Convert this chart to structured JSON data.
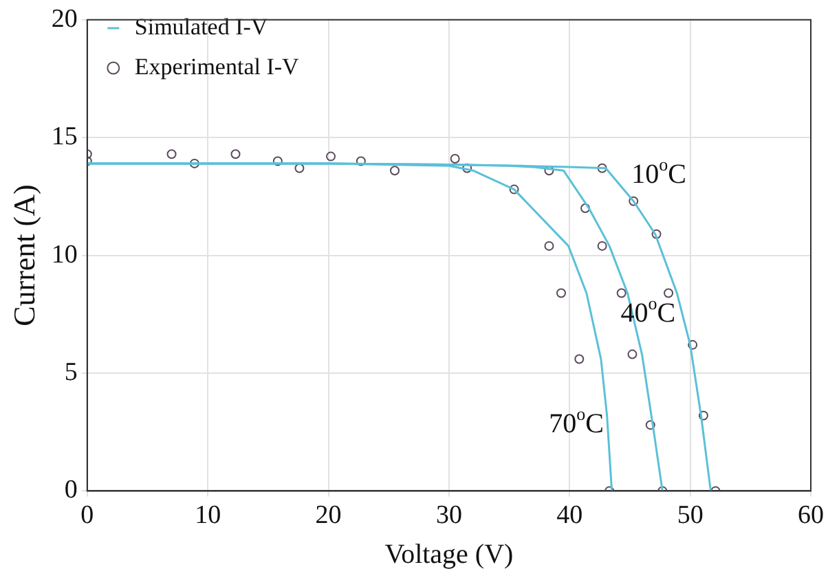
{
  "chart_data": {
    "type": "line",
    "xlabel": "Voltage (V)",
    "ylabel": "Current (A)",
    "xlim": [
      0,
      60
    ],
    "xticks": [
      0,
      10,
      20,
      30,
      40,
      50,
      60
    ],
    "ylim": [
      0,
      20
    ],
    "yticks": [
      0,
      5,
      10,
      15,
      20
    ],
    "grid": true,
    "legend": "top left",
    "line_style": "solid",
    "series": [
      {
        "name": "Simulated I-V",
        "color": "#5bc0d8",
        "marker": "none",
        "x": [
          0,
          20,
          30,
          36,
          40,
          43.0,
          45.3,
          47.1,
          48.9,
          50.0,
          50.9,
          51.7
        ],
        "values": [
          13.9,
          13.9,
          13.85,
          13.8,
          13.75,
          13.7,
          12.3,
          10.9,
          8.4,
          6.2,
          3.2,
          0
        ]
      },
      {
        "color": "#5bc0d8",
        "marker": "none",
        "x": [
          0,
          20,
          30,
          35,
          37,
          39.5,
          41.6,
          43.3,
          44.8,
          46.0,
          46.9,
          47.7
        ],
        "values": [
          13.9,
          13.9,
          13.85,
          13.8,
          13.75,
          13.6,
          12.0,
          10.4,
          8.4,
          5.8,
          2.8,
          0
        ]
      },
      {
        "color": "#5bc0d8",
        "marker": "none",
        "x": [
          0,
          20,
          30,
          32,
          35.4,
          39.9,
          41.4,
          42.6,
          43.1,
          43.5
        ],
        "values": [
          13.9,
          13.9,
          13.8,
          13.6,
          12.8,
          10.4,
          8.4,
          5.6,
          3.2,
          0
        ]
      },
      {
        "name": "Experimental I-V",
        "type": "scatter",
        "color": "#5a4a5a",
        "marker": "circle",
        "x": [
          0,
          0,
          7,
          8.9,
          12.3,
          15.8,
          17.6,
          20.2,
          22.7,
          25.5,
          30.5,
          31.5,
          35.4,
          38.3,
          42.7,
          45.3,
          41.3,
          38.3,
          42.7,
          47.2,
          39.3,
          44.3,
          48.2,
          50.2,
          45.2,
          40.8,
          51.1,
          46.7,
          43.3,
          47.7,
          52.1
        ],
        "values": [
          14.3,
          14.0,
          14.3,
          13.9,
          14.3,
          14.0,
          13.7,
          14.2,
          14.0,
          13.6,
          14.1,
          13.7,
          12.8,
          13.6,
          13.7,
          12.3,
          12.0,
          10.4,
          10.4,
          10.9,
          8.4,
          8.4,
          8.4,
          6.2,
          5.8,
          5.6,
          3.2,
          2.8,
          0,
          0,
          0
        ]
      }
    ],
    "annotations": [
      "10$^{o}$C",
      "40$^{o}$C",
      "70$^{o}$C"
    ]
  }
}
